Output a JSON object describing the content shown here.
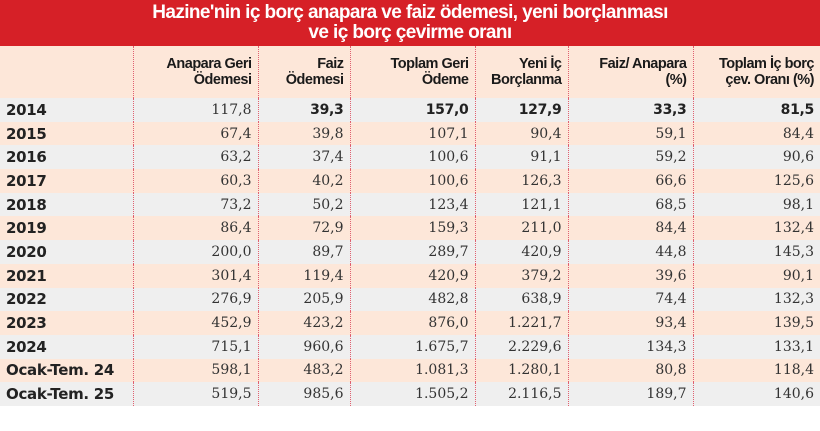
{
  "title": {
    "line1": "Hazine'nin iç borç anapara ve faiz ödemesi, yeni borçlanması",
    "line2": "ve iç borç çevirme oranı"
  },
  "colors": {
    "title_bg": "#d62027",
    "header_bg": "#fde7d9",
    "row_alt_gray": "#efefef",
    "row_alt_peach": "#fde7d9",
    "divider": "#e06070"
  },
  "columns": [
    {
      "l1": "",
      "l2": ""
    },
    {
      "l1": "Anapara Geri",
      "l2": "Ödemesi"
    },
    {
      "l1": "Faiz",
      "l2": "Ödemesi"
    },
    {
      "l1": "Toplam Geri",
      "l2": "Ödeme"
    },
    {
      "l1": "Yeni İç",
      "l2": "Borçlanma"
    },
    {
      "l1": "Faiz/ Anapara",
      "l2": "(%)"
    },
    {
      "l1": "Toplam İç borç",
      "l2": "çev. Oranı (%)"
    }
  ],
  "rows": [
    [
      "2014",
      "117,8",
      "39,3",
      "157,0",
      "127,9",
      "33,3",
      "81,5"
    ],
    [
      "2015",
      "67,4",
      "39,8",
      "107,1",
      "90,4",
      "59,1",
      "84,4"
    ],
    [
      "2016",
      "63,2",
      "37,4",
      "100,6",
      "91,1",
      "59,2",
      "90,6"
    ],
    [
      "2017",
      "60,3",
      "40,2",
      "100,6",
      "126,3",
      "66,6",
      "125,6"
    ],
    [
      "2018",
      "73,2",
      "50,2",
      "123,4",
      "121,1",
      "68,5",
      "98,1"
    ],
    [
      "2019",
      "86,4",
      "72,9",
      "159,3",
      "211,0",
      "84,4",
      "132,4"
    ],
    [
      "2020",
      "200,0",
      "89,7",
      "289,7",
      "420,9",
      "44,8",
      "145,3"
    ],
    [
      "2021",
      "301,4",
      "119,4",
      "420,9",
      "379,2",
      "39,6",
      "90,1"
    ],
    [
      "2022",
      "276,9",
      "205,9",
      "482,8",
      "638,9",
      "74,4",
      "132,3"
    ],
    [
      "2023",
      "452,9",
      "423,2",
      "876,0",
      "1.221,7",
      "93,4",
      "139,5"
    ],
    [
      "2024",
      "715,1",
      "960,6",
      "1.675,7",
      "2.229,6",
      "134,3",
      "133,1"
    ],
    [
      "Ocak-Tem. 24",
      "598,1",
      "483,2",
      "1.081,3",
      "1.280,1",
      "80,8",
      "118,4"
    ],
    [
      "Ocak-Tem. 25",
      "519,5",
      "985,6",
      "1.505,2",
      "2.116,5",
      "189,7",
      "140,6"
    ]
  ]
}
